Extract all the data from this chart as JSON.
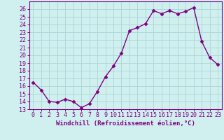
{
  "x": [
    0,
    1,
    2,
    3,
    4,
    5,
    6,
    7,
    8,
    9,
    10,
    11,
    12,
    13,
    14,
    15,
    16,
    17,
    18,
    19,
    20,
    21,
    22,
    23
  ],
  "y": [
    16.5,
    15.5,
    14.0,
    13.9,
    14.3,
    14.0,
    13.2,
    13.7,
    15.3,
    17.2,
    18.6,
    20.3,
    23.2,
    23.6,
    24.1,
    25.8,
    25.4,
    25.8,
    25.4,
    25.7,
    26.2,
    21.8,
    19.7,
    18.8
  ],
  "line_color": "#800080",
  "marker": "D",
  "marker_size": 2.5,
  "bg_color": "#d0f0f0",
  "grid_color": "#b0d8d8",
  "xlabel": "Windchill (Refroidissement éolien,°C)",
  "ylim": [
    13,
    27
  ],
  "xlim": [
    -0.5,
    23.5
  ],
  "yticks": [
    13,
    14,
    15,
    16,
    17,
    18,
    19,
    20,
    21,
    22,
    23,
    24,
    25,
    26
  ],
  "xticks": [
    0,
    1,
    2,
    3,
    4,
    5,
    6,
    7,
    8,
    9,
    10,
    11,
    12,
    13,
    14,
    15,
    16,
    17,
    18,
    19,
    20,
    21,
    22,
    23
  ],
  "label_color": "#800080",
  "tick_color": "#800080",
  "font_size_xlabel": 6.5,
  "font_size_ticks": 6.0,
  "line_width": 1.0
}
